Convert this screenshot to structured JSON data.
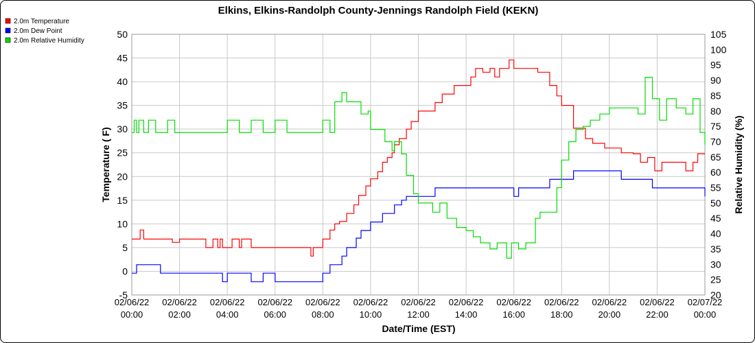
{
  "chart_data": {
    "type": "line",
    "title": "Elkins, Elkins-Randolph County-Jennings Randolph Field (KEKN)",
    "xlabel": "Date/Time (EST)",
    "ylabel": "Temperature ( F)",
    "y2label": "Relative Humidity (%)",
    "ylim": [
      -5,
      50
    ],
    "y2lim": [
      20,
      105
    ],
    "xlim": [
      0,
      24
    ],
    "yticks": [
      -5,
      0,
      5,
      10,
      15,
      20,
      25,
      30,
      35,
      40,
      45,
      50
    ],
    "y2ticks": [
      20,
      25,
      30,
      35,
      40,
      45,
      50,
      55,
      60,
      65,
      70,
      75,
      80,
      85,
      90,
      95,
      100,
      105
    ],
    "xticks": [
      {
        "x": 0,
        "date": "02/06/22",
        "time": "00:00"
      },
      {
        "x": 2,
        "date": "02/06/22",
        "time": "02:00"
      },
      {
        "x": 4,
        "date": "02/06/22",
        "time": "04:00"
      },
      {
        "x": 6,
        "date": "02/06/22",
        "time": "06:00"
      },
      {
        "x": 8,
        "date": "02/06/22",
        "time": "08:00"
      },
      {
        "x": 10,
        "date": "02/06/22",
        "time": "10:00"
      },
      {
        "x": 12,
        "date": "02/06/22",
        "time": "12:00"
      },
      {
        "x": 14,
        "date": "02/06/22",
        "time": "14:00"
      },
      {
        "x": 16,
        "date": "02/06/22",
        "time": "16:00"
      },
      {
        "x": 18,
        "date": "02/06/22",
        "time": "18:00"
      },
      {
        "x": 20,
        "date": "02/06/22",
        "time": "20:00"
      },
      {
        "x": 22,
        "date": "02/06/22",
        "time": "22:00"
      },
      {
        "x": 24,
        "date": "02/07/22",
        "time": "00:00"
      }
    ],
    "grid": true,
    "legend_position": "top-left",
    "series": [
      {
        "name": "2.0m Temperature",
        "color": "#ff0000",
        "axis": "left",
        "x": [
          0,
          0.25,
          0.35,
          0.5,
          1.0,
          1.5,
          1.7,
          2.0,
          2.9,
          3.1,
          3.4,
          3.6,
          3.7,
          3.8,
          4.0,
          4.2,
          4.5,
          4.6,
          5.0,
          6.0,
          7.2,
          7.5,
          7.6,
          8.0,
          8.3,
          8.5,
          8.7,
          9.0,
          9.3,
          9.5,
          9.8,
          10.0,
          10.3,
          10.5,
          10.7,
          10.9,
          11.0,
          11.2,
          11.5,
          11.7,
          12.0,
          12.5,
          12.7,
          13.0,
          13.5,
          14.0,
          14.2,
          14.4,
          14.7,
          15.0,
          15.2,
          15.4,
          15.6,
          15.8,
          16.0,
          16.3,
          17.0,
          17.5,
          17.8,
          18.0,
          18.5,
          19.0,
          19.3,
          19.8,
          20.5,
          21.0,
          21.3,
          21.6,
          21.9,
          22.2,
          22.8,
          23.2,
          23.5,
          23.7,
          24.0
        ],
        "values": [
          6.8,
          6.8,
          8.7,
          6.8,
          6.8,
          6.8,
          6.1,
          6.8,
          6.8,
          5.0,
          6.8,
          5.0,
          6.8,
          5.0,
          5.0,
          6.8,
          5.0,
          6.8,
          5.0,
          5.0,
          5.0,
          3.2,
          5.0,
          6.8,
          8.7,
          10.0,
          10.5,
          12.2,
          14.0,
          16.0,
          18.0,
          19.5,
          21.0,
          23.0,
          24.0,
          25.0,
          26.7,
          28.0,
          30.0,
          31.6,
          33.8,
          33.8,
          35.6,
          37.4,
          39.2,
          39.2,
          41.0,
          42.8,
          42.0,
          42.8,
          41.0,
          42.8,
          42.8,
          44.6,
          42.8,
          42.8,
          42.0,
          39.2,
          37.0,
          35.0,
          30.2,
          28.0,
          27.0,
          26.0,
          25.0,
          24.8,
          23.0,
          24.0,
          21.2,
          23.0,
          23.0,
          21.2,
          23.0,
          24.8,
          24.8
        ]
      },
      {
        "name": "2.0m Dew Point",
        "color": "#0000ff",
        "axis": "left",
        "x": [
          0,
          0.2,
          0.5,
          0.8,
          1.0,
          1.2,
          1.5,
          1.8,
          2.0,
          2.5,
          3.0,
          3.5,
          3.8,
          4.0,
          4.5,
          5.0,
          5.5,
          6.0,
          6.5,
          7.0,
          7.5,
          7.9,
          8.0,
          8.3,
          8.5,
          8.8,
          9.0,
          9.4,
          9.6,
          10.0,
          10.5,
          10.9,
          11.0,
          11.3,
          11.5,
          12.0,
          12.5,
          12.7,
          13.0,
          13.5,
          13.8,
          14.0,
          14.3,
          14.6,
          15.0,
          15.3,
          15.5,
          16.0,
          16.2,
          16.5,
          17.0,
          17.5,
          17.8,
          18.0,
          18.5,
          19.0,
          19.5,
          19.8,
          20.0,
          20.5,
          21.0,
          21.5,
          21.8,
          22.0,
          22.5,
          23.0,
          23.5,
          23.8,
          24.0
        ],
        "values": [
          -0.4,
          1.4,
          1.4,
          1.4,
          1.4,
          -0.4,
          -0.4,
          -0.4,
          -0.4,
          -0.4,
          -0.4,
          -0.4,
          -2.2,
          -0.4,
          -0.4,
          -2.2,
          -0.4,
          -2.2,
          -2.2,
          -2.2,
          -2.2,
          -2.2,
          -0.4,
          1.4,
          1.4,
          3.2,
          5.0,
          7.0,
          8.6,
          10.4,
          12.2,
          12.2,
          14.0,
          15.0,
          15.8,
          15.8,
          15.8,
          17.6,
          17.6,
          17.6,
          17.6,
          17.6,
          17.6,
          17.6,
          17.6,
          17.6,
          17.6,
          15.8,
          17.6,
          17.6,
          17.6,
          19.4,
          19.4,
          19.4,
          21.2,
          21.2,
          21.2,
          21.2,
          21.2,
          19.4,
          19.4,
          19.4,
          17.6,
          17.6,
          17.6,
          17.6,
          17.6,
          17.6,
          15.8
        ]
      },
      {
        "name": "2.0m Relative Humidity",
        "color": "#00dd00",
        "axis": "right",
        "x": [
          0,
          0.1,
          0.2,
          0.3,
          0.5,
          0.7,
          1.0,
          1.3,
          1.5,
          1.8,
          2.0,
          2.5,
          3.0,
          3.5,
          4.0,
          4.5,
          5.0,
          5.5,
          6.0,
          6.5,
          7.0,
          7.5,
          7.8,
          8.0,
          8.3,
          8.5,
          8.8,
          9.0,
          9.3,
          9.6,
          9.9,
          10.0,
          10.3,
          10.6,
          10.9,
          11.0,
          11.3,
          11.5,
          11.8,
          12.0,
          12.3,
          12.6,
          12.9,
          13.2,
          13.6,
          14.0,
          14.3,
          14.6,
          15.0,
          15.3,
          15.7,
          15.9,
          16.2,
          16.5,
          16.9,
          17.1,
          17.5,
          17.8,
          18.0,
          18.3,
          18.6,
          18.9,
          19.2,
          19.6,
          20.0,
          20.4,
          20.8,
          21.2,
          21.5,
          21.8,
          22.1,
          22.4,
          22.8,
          23.2,
          23.5,
          23.8,
          24.0
        ],
        "values": [
          73,
          77,
          73,
          77,
          73,
          77,
          73,
          73,
          77,
          73,
          73,
          73,
          73,
          73,
          77,
          73,
          77,
          73,
          77,
          73,
          73,
          73,
          73,
          77,
          73,
          83,
          86,
          83,
          83,
          79,
          80,
          74,
          74,
          70,
          67,
          70,
          66,
          59,
          53,
          50,
          50,
          47,
          50,
          45,
          42,
          41,
          39,
          37,
          35,
          37,
          32,
          37,
          35,
          37,
          45,
          47,
          47,
          55,
          64,
          70,
          74,
          75,
          77,
          79,
          81,
          81,
          81,
          79,
          91,
          84,
          77,
          84,
          81,
          79,
          84,
          73,
          69
        ]
      }
    ]
  }
}
